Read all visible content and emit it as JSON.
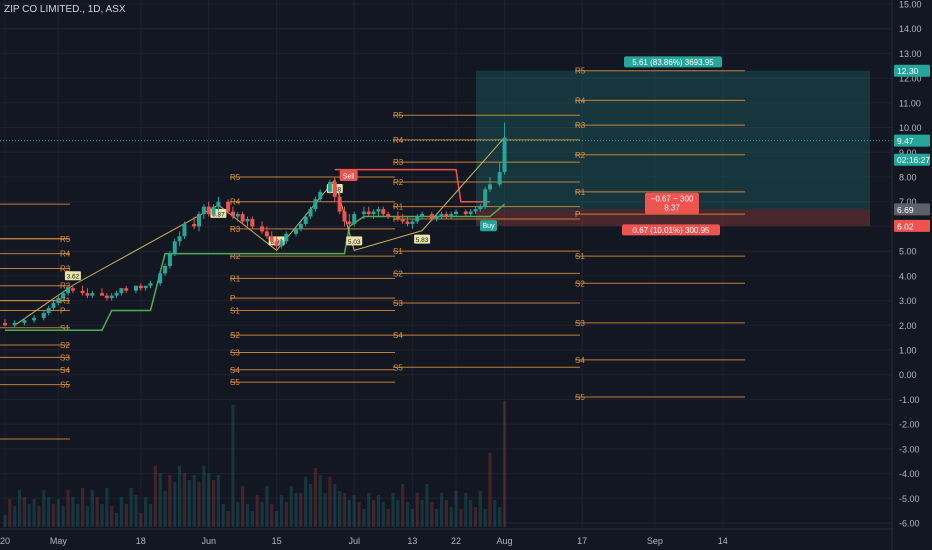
{
  "symbol": "ZIP CO LIMITED., 1D, ASX",
  "colors": {
    "background": "#131722",
    "up": "#26a69a",
    "down": "#ef5350",
    "pivot": "#e0913a",
    "grid": "#1e2230",
    "text": "#b2b5be",
    "supertrend": "#4caf50",
    "trend_line": "#c8b45a"
  },
  "chart_data": {
    "type": "candlestick",
    "y_axis": {
      "min": -6.0,
      "max": 15.0,
      "ticks": [
        "15.00",
        "14.00",
        "13.00",
        "12.00",
        "11.00",
        "10.00",
        "9.00",
        "8.00",
        "7.00",
        "6.00",
        "5.00",
        "4.00",
        "3.00",
        "2.00",
        "1.00",
        "0.00",
        "-1.00",
        "-2.00",
        "-3.00",
        "-4.00",
        "-5.00",
        "-6.00"
      ]
    },
    "x_axis": {
      "labels": [
        {
          "label": "20",
          "day": 0
        },
        {
          "label": "May",
          "day": 11
        },
        {
          "label": "18",
          "day": 28
        },
        {
          "label": "Jun",
          "day": 42
        },
        {
          "label": "15",
          "day": 56
        },
        {
          "label": "Jul",
          "day": 72
        },
        {
          "label": "13",
          "day": 84
        },
        {
          "label": "22",
          "day": 93
        },
        {
          "label": "Aug",
          "day": 103
        },
        {
          "label": "17",
          "day": 119
        },
        {
          "label": "Sep",
          "day": 134
        },
        {
          "label": "14",
          "day": 148
        }
      ],
      "first_day": 0,
      "last_day": 161
    },
    "price_badges": [
      {
        "value": 12.3,
        "label": "12.30",
        "color": "#26a69a"
      },
      {
        "value": 9.47,
        "label": "9.47",
        "color": "#26a69a"
      },
      {
        "value": 8.7,
        "label": "02:16:27",
        "color": "#26a69a"
      },
      {
        "value": 6.69,
        "label": "6.69",
        "color": "#5d606b"
      },
      {
        "value": 6.02,
        "label": "6.02",
        "color": "#ef5350"
      }
    ],
    "candles": [
      [
        0,
        2.1,
        2.25,
        1.95,
        2.0
      ],
      [
        2,
        2.0,
        2.2,
        1.9,
        2.1
      ],
      [
        4,
        2.1,
        2.3,
        2.0,
        2.2
      ],
      [
        6,
        2.2,
        2.4,
        2.1,
        2.3
      ],
      [
        8,
        2.3,
        2.6,
        2.2,
        2.5
      ],
      [
        9,
        2.5,
        2.8,
        2.4,
        2.7
      ],
      [
        10,
        2.7,
        3.0,
        2.6,
        2.9
      ],
      [
        11,
        2.9,
        3.2,
        2.8,
        3.1
      ],
      [
        12,
        3.1,
        3.4,
        3.0,
        3.3
      ],
      [
        13,
        3.3,
        3.6,
        3.2,
        3.5
      ],
      [
        14,
        3.5,
        3.65,
        3.3,
        3.4
      ],
      [
        16,
        3.4,
        3.6,
        3.2,
        3.3
      ],
      [
        17,
        3.3,
        3.5,
        3.1,
        3.2
      ],
      [
        18,
        3.2,
        3.4,
        3.1,
        3.3
      ],
      [
        20,
        3.3,
        3.5,
        3.2,
        3.2
      ],
      [
        21,
        3.2,
        3.3,
        3.0,
        3.1
      ],
      [
        22,
        3.1,
        3.3,
        3.0,
        3.2
      ],
      [
        23,
        3.2,
        3.4,
        3.1,
        3.3
      ],
      [
        24,
        3.3,
        3.5,
        3.2,
        3.5
      ],
      [
        25,
        3.5,
        3.6,
        3.3,
        3.4
      ],
      [
        27,
        3.4,
        3.6,
        3.3,
        3.6
      ],
      [
        28,
        3.6,
        3.7,
        3.4,
        3.5
      ],
      [
        29,
        3.5,
        3.6,
        3.4,
        3.6
      ],
      [
        30,
        3.6,
        3.8,
        3.5,
        3.7
      ],
      [
        32,
        3.7,
        4.2,
        3.6,
        4.1
      ],
      [
        33,
        4.1,
        4.5,
        4.0,
        4.4
      ],
      [
        34,
        4.4,
        5.0,
        4.3,
        4.9
      ],
      [
        35,
        4.9,
        5.5,
        4.8,
        5.4
      ],
      [
        36,
        5.4,
        5.8,
        5.2,
        5.6
      ],
      [
        37,
        5.6,
        6.2,
        5.5,
        6.1
      ],
      [
        39,
        6.1,
        6.4,
        5.9,
        6.0
      ],
      [
        40,
        6.0,
        6.6,
        5.8,
        6.5
      ],
      [
        41,
        6.5,
        6.9,
        6.3,
        6.8
      ],
      [
        42,
        6.8,
        7.0,
        6.4,
        6.5
      ],
      [
        43,
        6.5,
        6.9,
        6.4,
        6.8
      ],
      [
        44,
        6.8,
        7.2,
        6.6,
        7.0
      ],
      [
        46,
        7.0,
        7.1,
        6.5,
        6.6
      ],
      [
        47,
        6.6,
        6.8,
        6.3,
        6.4
      ],
      [
        48,
        6.4,
        6.6,
        6.2,
        6.5
      ],
      [
        49,
        6.5,
        6.6,
        6.1,
        6.2
      ],
      [
        50,
        6.2,
        6.4,
        6.0,
        6.3
      ],
      [
        51,
        6.3,
        6.4,
        5.9,
        6.0
      ],
      [
        53,
        6.0,
        6.2,
        5.7,
        5.8
      ],
      [
        54,
        5.8,
        6.0,
        5.5,
        5.6
      ],
      [
        55,
        5.6,
        5.8,
        5.3,
        5.4
      ],
      [
        56,
        5.4,
        5.6,
        5.1,
        5.2
      ],
      [
        57,
        5.2,
        5.5,
        5.1,
        5.4
      ],
      [
        58,
        5.4,
        5.8,
        5.3,
        5.7
      ],
      [
        60,
        5.7,
        6.0,
        5.6,
        5.9
      ],
      [
        61,
        5.9,
        6.2,
        5.8,
        6.1
      ],
      [
        62,
        6.1,
        6.5,
        6.0,
        6.4
      ],
      [
        63,
        6.4,
        6.8,
        6.3,
        6.7
      ],
      [
        64,
        6.7,
        7.2,
        6.6,
        7.1
      ],
      [
        65,
        7.1,
        7.5,
        7.0,
        7.4
      ],
      [
        67,
        7.4,
        7.9,
        7.3,
        7.8
      ],
      [
        68,
        7.8,
        8.0,
        7.0,
        7.2
      ],
      [
        69,
        7.2,
        7.4,
        6.5,
        6.6
      ],
      [
        70,
        6.6,
        6.8,
        6.0,
        6.2
      ],
      [
        71,
        6.2,
        6.5,
        5.8,
        6.1
      ],
      [
        72,
        6.1,
        6.6,
        6.0,
        6.5
      ],
      [
        74,
        6.5,
        6.8,
        6.3,
        6.6
      ],
      [
        75,
        6.6,
        6.8,
        6.4,
        6.5
      ],
      [
        76,
        6.5,
        6.7,
        6.3,
        6.6
      ],
      [
        77,
        6.6,
        6.8,
        6.4,
        6.7
      ],
      [
        78,
        6.7,
        6.8,
        6.4,
        6.5
      ],
      [
        79,
        6.5,
        6.6,
        6.3,
        6.4
      ],
      [
        81,
        6.4,
        6.6,
        6.2,
        6.3
      ],
      [
        82,
        6.3,
        6.5,
        6.1,
        6.2
      ],
      [
        83,
        6.2,
        6.4,
        6.0,
        6.1
      ],
      [
        84,
        6.1,
        6.3,
        5.9,
        6.2
      ],
      [
        85,
        6.2,
        6.5,
        6.1,
        6.4
      ],
      [
        86,
        6.4,
        6.6,
        6.3,
        6.5
      ],
      [
        88,
        6.5,
        6.6,
        6.2,
        6.3
      ],
      [
        89,
        6.3,
        6.5,
        6.2,
        6.4
      ],
      [
        90,
        6.4,
        6.6,
        6.3,
        6.5
      ],
      [
        91,
        6.5,
        6.6,
        6.3,
        6.4
      ],
      [
        92,
        6.4,
        6.6,
        6.3,
        6.5
      ],
      [
        93,
        6.5,
        6.7,
        6.4,
        6.6
      ],
      [
        95,
        6.6,
        6.7,
        6.4,
        6.5
      ],
      [
        96,
        6.5,
        6.7,
        6.4,
        6.6
      ],
      [
        97,
        6.6,
        6.8,
        6.5,
        6.7
      ],
      [
        98,
        6.7,
        6.9,
        6.6,
        6.8
      ],
      [
        99,
        6.8,
        7.6,
        6.7,
        7.5
      ],
      [
        100,
        7.5,
        8.0,
        7.4,
        7.7
      ],
      [
        102,
        7.7,
        8.6,
        7.6,
        8.2
      ],
      [
        103,
        8.2,
        10.2,
        8.1,
        9.6
      ]
    ]
  },
  "pivot_groups": [
    {
      "labels": [
        "R5",
        "R4",
        "R3",
        "R2",
        "R1",
        "P",
        "S1",
        "S2",
        "S3",
        "S4",
        "S5"
      ]
    },
    {
      "labels": [
        "R5",
        "R4",
        "R3",
        "R2",
        "R1",
        "P",
        "S1",
        "S2",
        "S3",
        "S4",
        "S5"
      ]
    },
    {
      "labels": [
        "R5",
        "R4",
        "R3",
        "R2",
        "R1",
        "P",
        "S1",
        "S2",
        "S3",
        "S4",
        "S5"
      ]
    },
    {
      "labels": [
        "R5",
        "R4",
        "R3",
        "R2",
        "R1",
        "P",
        "S1",
        "S2",
        "S3",
        "S4",
        "S5"
      ]
    }
  ],
  "zigzag_labels": [
    "3.62",
    "6.87",
    "5.03",
    "7.88",
    "5.03",
    "5.83"
  ],
  "signals": {
    "sell": "Sell",
    "buy": "Buy"
  },
  "position": {
    "target_label": "5.61 (83.86%) 3693.95",
    "pnl_line1": "−0.67 ~ 300",
    "pnl_line2": "8.37",
    "stop_label": "0.67 (10.01%) 300.95"
  }
}
